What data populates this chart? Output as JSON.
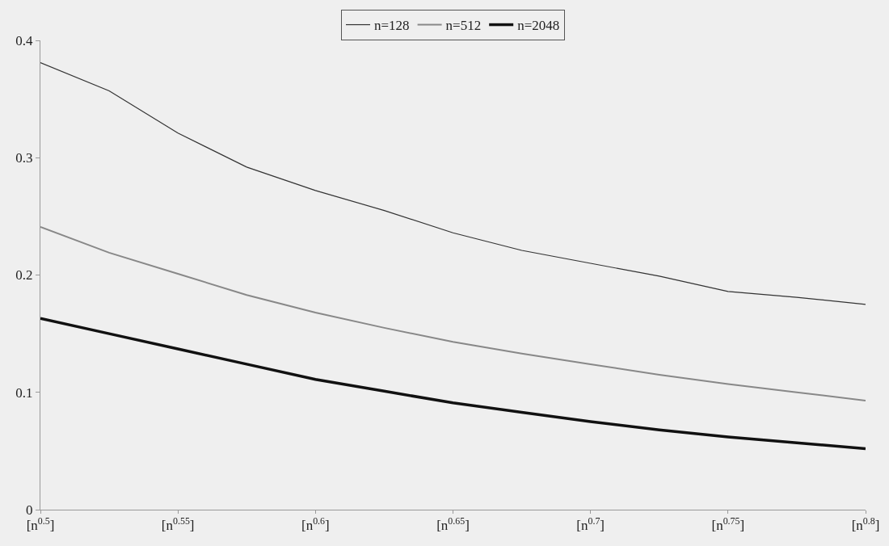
{
  "chart_data": {
    "type": "line",
    "x": [
      0.5,
      0.525,
      0.55,
      0.575,
      0.6,
      0.625,
      0.65,
      0.675,
      0.7,
      0.725,
      0.75,
      0.775,
      0.8
    ],
    "series": [
      {
        "name": "n=128",
        "color": "#333333",
        "values": [
          0.381,
          0.357,
          0.321,
          0.292,
          0.272,
          0.255,
          0.236,
          0.221,
          0.21,
          0.199,
          0.186,
          0.181,
          0.175
        ]
      },
      {
        "name": "n=512",
        "color": "#888888",
        "values": [
          0.241,
          0.219,
          0.201,
          0.183,
          0.168,
          0.155,
          0.143,
          0.133,
          0.124,
          0.115,
          0.107,
          0.1,
          0.093
        ]
      },
      {
        "name": "n=2048",
        "color": "#111111",
        "values": [
          0.163,
          0.15,
          0.137,
          0.124,
          0.111,
          0.101,
          0.091,
          0.083,
          0.075,
          0.068,
          0.062,
          0.057,
          0.052
        ]
      }
    ],
    "xlim": [
      0.5,
      0.8
    ],
    "xticks": [
      {
        "value": 0.5,
        "label": "[n$^{0.5}$]"
      },
      {
        "value": 0.55,
        "label": "[n$^{0.55}$]"
      },
      {
        "value": 0.6,
        "label": "[n$^{0.6}$]"
      },
      {
        "value": 0.65,
        "label": "[n$^{0.65}$]"
      },
      {
        "value": 0.7,
        "label": "[n$^{0.7}$]"
      },
      {
        "value": 0.75,
        "label": "[n$^{0.75}$]"
      },
      {
        "value": 0.8,
        "label": "[n$^{0.8}$]"
      }
    ],
    "ylim": [
      0,
      0.4
    ],
    "yticks": [
      0,
      0.1,
      0.2,
      0.3,
      0.4
    ],
    "grid": false,
    "legend": "top",
    "marker": "none",
    "line_style": "solid"
  }
}
